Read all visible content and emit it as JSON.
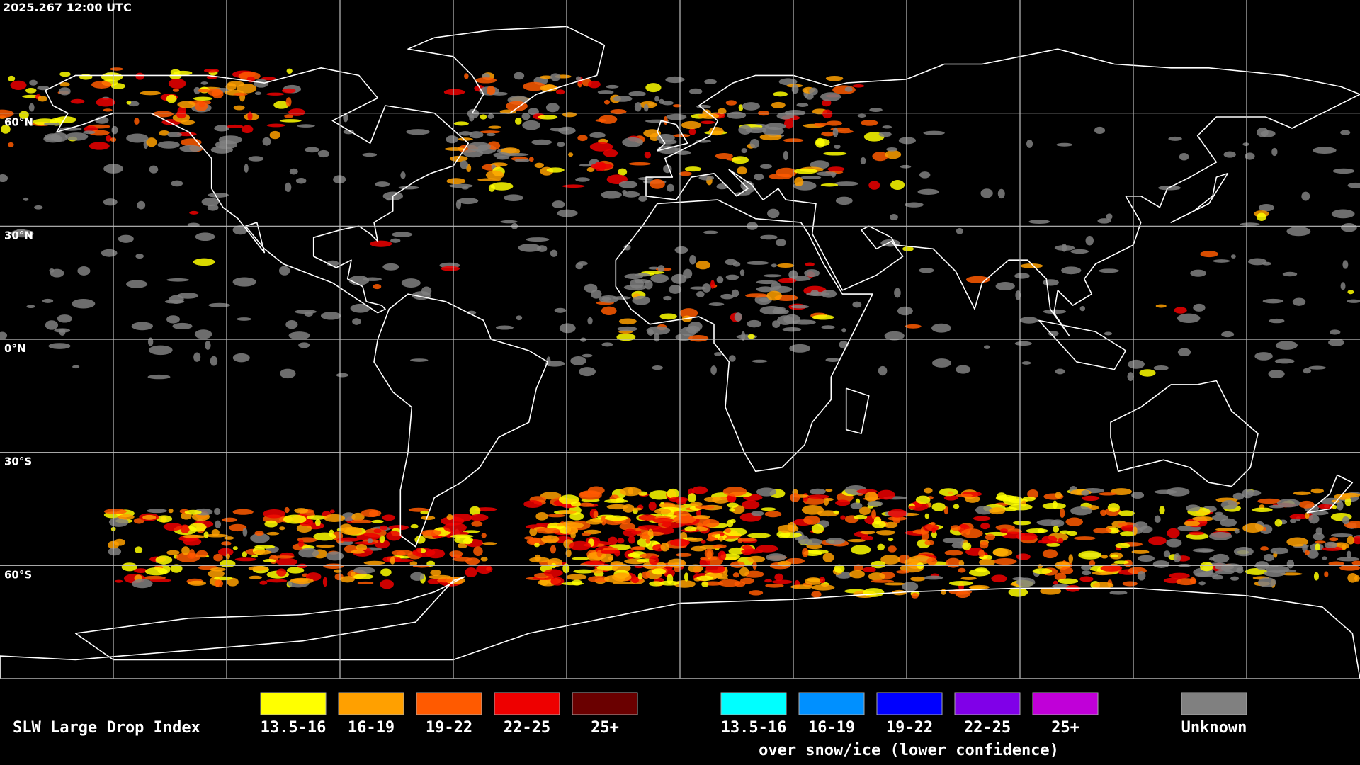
{
  "header": {
    "timestamp": "2025.267 12:00 UTC"
  },
  "map": {
    "lat_labels": [
      "60°N",
      "30°N",
      "0°N",
      "30°S",
      "60°S"
    ]
  },
  "legend": {
    "title": "SLW Large Drop Index",
    "items": [
      {
        "label": "13.5-16",
        "color": "#ffff00"
      },
      {
        "label": "16-19",
        "color": "#ffa000"
      },
      {
        "label": "19-22",
        "color": "#ff5a00"
      },
      {
        "label": "22-25",
        "color": "#ee0000"
      },
      {
        "label": "25+",
        "color": "#6a0000"
      }
    ],
    "snow_items": [
      {
        "label": "13.5-16",
        "color": "#00ffff"
      },
      {
        "label": "16-19",
        "color": "#0090ff"
      },
      {
        "label": "19-22",
        "color": "#0000ff"
      },
      {
        "label": "22-25",
        "color": "#8000e8"
      },
      {
        "label": "25+",
        "color": "#c000d8"
      }
    ],
    "snow_caption": "over snow/ice (lower confidence)",
    "unknown": {
      "label": "Unknown",
      "color": "#808080"
    }
  }
}
